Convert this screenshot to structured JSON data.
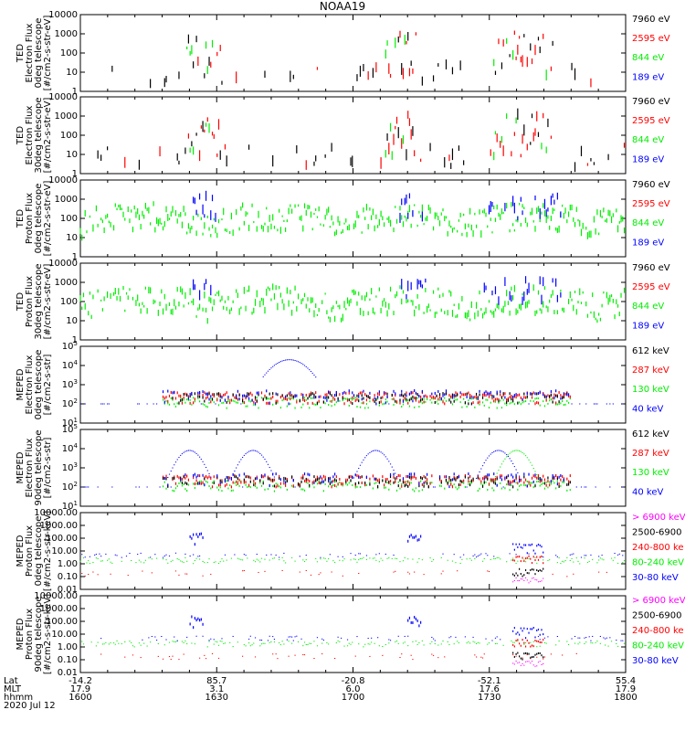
{
  "title": "NOAA19",
  "date_label": "2020 Jul 12",
  "colors": {
    "black": "#000000",
    "red": "#ff0000",
    "green": "#00ee00",
    "blue": "#0000ff",
    "magenta": "#ff00ff"
  },
  "footer": {
    "row_labels": [
      "Lat",
      "MLT",
      "hhmm"
    ],
    "columns": [
      {
        "lat": "-14.2",
        "mlt": "17.9",
        "hhmm": "1600"
      },
      {
        "lat": "85.7",
        "mlt": "3.1",
        "hhmm": "1630"
      },
      {
        "lat": "-20.8",
        "mlt": "6.0",
        "hhmm": "1700"
      },
      {
        "lat": "-52.1",
        "mlt": "17.6",
        "hhmm": "1730"
      },
      {
        "lat": "55.4",
        "mlt": "17.9",
        "hhmm": "1800"
      }
    ]
  },
  "chart_data": [
    {
      "type": "scatter",
      "ylabel": [
        "TED",
        "Electron Flux",
        "0deg telescope",
        "[#/cm2-s-str-eV]"
      ],
      "yscale": "log",
      "ylim": [
        1,
        10000
      ],
      "yticks": [
        "10000",
        "1000",
        "100",
        "10",
        "1"
      ],
      "legend": [
        {
          "label": "7960 eV",
          "color": "black"
        },
        {
          "label": "2595 eV",
          "color": "red"
        },
        {
          "label": "844 eV",
          "color": "green"
        },
        {
          "label": "189 eV",
          "color": "blue"
        }
      ],
      "xlim": [
        0,
        120
      ]
    },
    {
      "type": "scatter",
      "ylabel": [
        "TED",
        "Electron Flux",
        "30deg telescope",
        "[#/cm2-s-str-eV]"
      ],
      "yscale": "log",
      "ylim": [
        1,
        10000
      ],
      "yticks": [
        "10000",
        "1000",
        "100",
        "10",
        "1"
      ],
      "legend": [
        {
          "label": "7960 eV",
          "color": "black"
        },
        {
          "label": "2595 eV",
          "color": "red"
        },
        {
          "label": "844 eV",
          "color": "green"
        },
        {
          "label": "189 eV",
          "color": "blue"
        }
      ],
      "xlim": [
        0,
        120
      ]
    },
    {
      "type": "scatter",
      "ylabel": [
        "TED",
        "Proton Flux",
        "0deg telescope",
        "[#/cm2-s-str-eV]"
      ],
      "yscale": "log",
      "ylim": [
        1,
        10000
      ],
      "yticks": [
        "10000",
        "1000",
        "100",
        "10",
        "1"
      ],
      "legend": [
        {
          "label": "7960 eV",
          "color": "black"
        },
        {
          "label": "2595 eV",
          "color": "red"
        },
        {
          "label": "844 eV",
          "color": "green"
        },
        {
          "label": "189 eV",
          "color": "blue"
        }
      ],
      "xlim": [
        0,
        120
      ]
    },
    {
      "type": "scatter",
      "ylabel": [
        "TED",
        "Proton Flux",
        "30deg telescope",
        "[#/cm2-s-str-eV]"
      ],
      "yscale": "log",
      "ylim": [
        1,
        10000
      ],
      "yticks": [
        "10000",
        "1000",
        "100",
        "10",
        "1"
      ],
      "legend": [
        {
          "label": "7960 eV",
          "color": "black"
        },
        {
          "label": "2595 eV",
          "color": "red"
        },
        {
          "label": "844 eV",
          "color": "green"
        },
        {
          "label": "189 eV",
          "color": "blue"
        }
      ],
      "xlim": [
        0,
        120
      ]
    },
    {
      "type": "scatter",
      "ylabel": [
        "MEPED",
        "Electron Flux",
        "0deg telescope",
        "[#/cm2-s-str]"
      ],
      "yscale": "log",
      "ylim": [
        10,
        100000
      ],
      "yticks": [
        "10^5",
        "10^4",
        "10^3",
        "10^2",
        "10^1"
      ],
      "legend": [
        {
          "label": "612 keV",
          "color": "black"
        },
        {
          "label": "287 keV",
          "color": "red"
        },
        {
          "label": "130 keV",
          "color": "green"
        },
        {
          "label": "40 keV",
          "color": "blue"
        }
      ],
      "xlim": [
        0,
        120
      ]
    },
    {
      "type": "scatter",
      "ylabel": [
        "MEPED",
        "Electron Flux",
        "90deg telescope",
        "[#/cm2-s-str]"
      ],
      "yscale": "log",
      "ylim": [
        10,
        100000
      ],
      "yticks": [
        "10^5",
        "10^4",
        "10^3",
        "10^2",
        "10^1"
      ],
      "legend": [
        {
          "label": "612 keV",
          "color": "black"
        },
        {
          "label": "287 keV",
          "color": "red"
        },
        {
          "label": "130 keV",
          "color": "green"
        },
        {
          "label": "40 keV",
          "color": "blue"
        }
      ],
      "xlim": [
        0,
        120
      ]
    },
    {
      "type": "scatter",
      "ylabel": [
        "MEPED",
        "Proton Flux",
        "0deg telescope",
        "[#/cm2-s-str-keV]"
      ],
      "yscale": "log",
      "ylim": [
        0.01,
        10000
      ],
      "yticks": [
        "10000.00",
        "1000.00",
        "100.00",
        "10.00",
        "1.00",
        "0.10",
        "0.01"
      ],
      "legend": [
        {
          "label": "> 6900 keV",
          "color": "magenta"
        },
        {
          "label": "2500-6900",
          "color": "black"
        },
        {
          "label": "240-800 ke",
          "color": "red"
        },
        {
          "label": "80-240 keV",
          "color": "green"
        },
        {
          "label": "30-80 keV",
          "color": "blue"
        }
      ],
      "xlim": [
        0,
        120
      ]
    },
    {
      "type": "scatter",
      "ylabel": [
        "MEPED",
        "Proton Flux",
        "90deg telescope",
        "[#/cm2-s-str-keV]"
      ],
      "yscale": "log",
      "ylim": [
        0.01,
        10000
      ],
      "yticks": [
        "10000.00",
        "1000.00",
        "100.00",
        "10.00",
        "1.00",
        "0.10",
        "0.01"
      ],
      "legend": [
        {
          "label": "> 6900 keV",
          "color": "magenta"
        },
        {
          "label": "2500-6900",
          "color": "black"
        },
        {
          "label": "240-800 ke",
          "color": "red"
        },
        {
          "label": "80-240 keV",
          "color": "green"
        },
        {
          "label": "30-80 keV",
          "color": "blue"
        }
      ],
      "xlim": [
        0,
        120
      ]
    }
  ]
}
